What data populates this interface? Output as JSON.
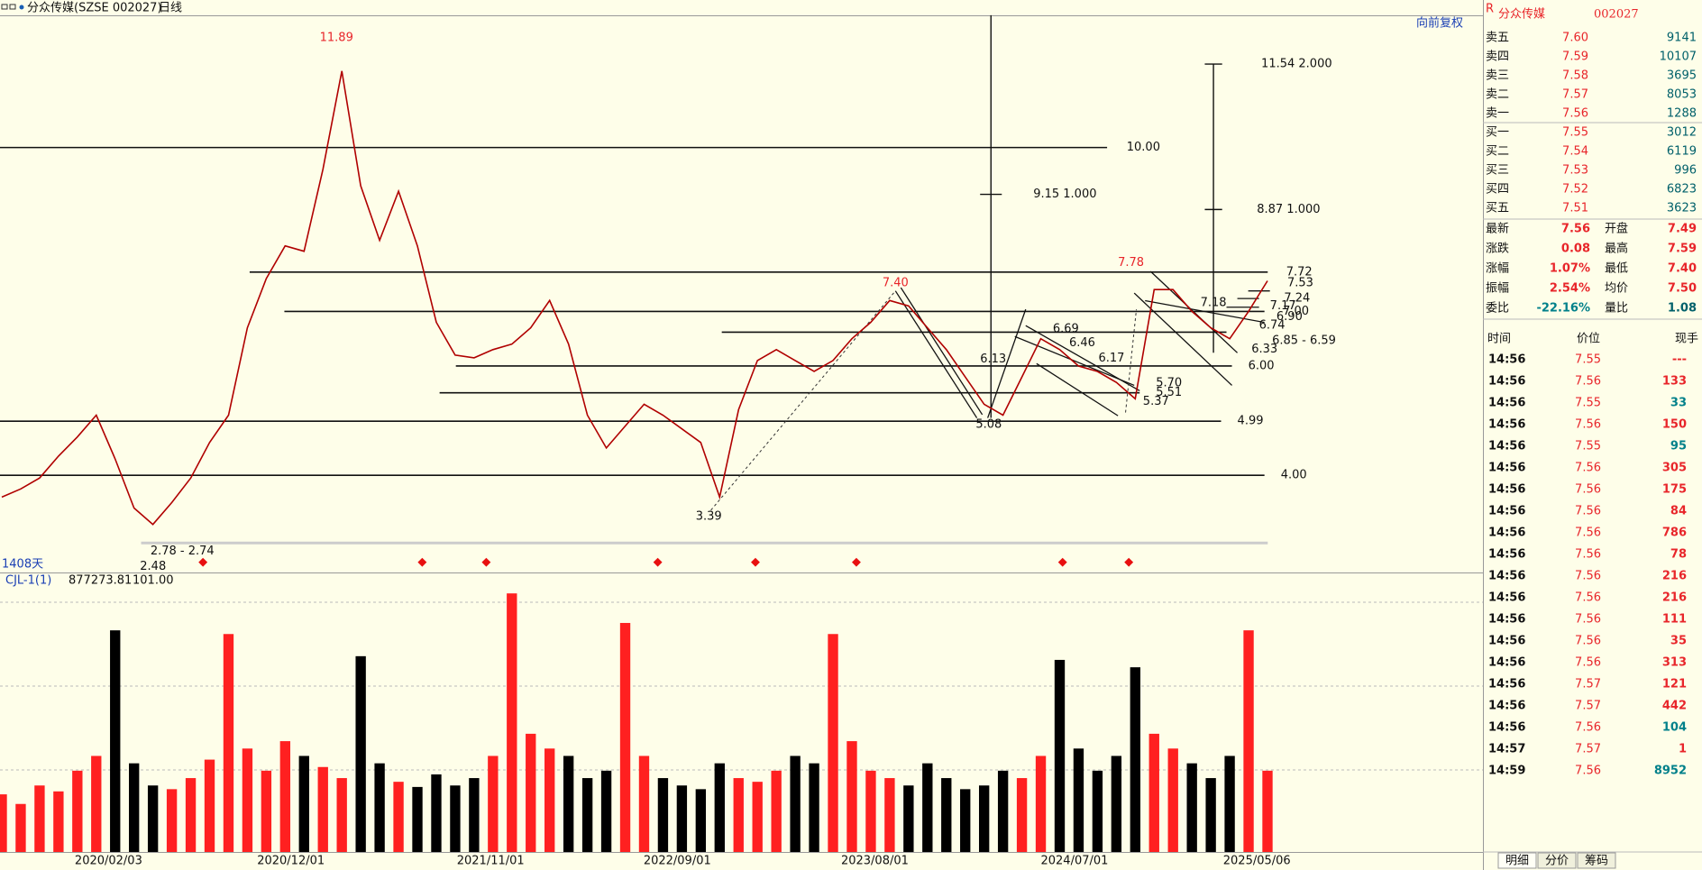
{
  "header": {
    "symbol": "分众传媒(SZSE 002027)",
    "period": "日线",
    "adjust": "向前复权"
  },
  "chart_data": [
    {
      "type": "line",
      "color": "#b00000",
      "ylim": [
        2.22,
        12.42
      ],
      "values": [
        3.6,
        3.75,
        3.95,
        4.35,
        4.7,
        5.1,
        4.3,
        3.4,
        3.1,
        3.5,
        3.95,
        4.6,
        5.1,
        6.7,
        7.6,
        8.2,
        8.1,
        9.6,
        11.4,
        9.3,
        8.3,
        9.2,
        8.2,
        6.8,
        6.2,
        6.15,
        6.3,
        6.4,
        6.7,
        7.2,
        6.4,
        5.1,
        4.5,
        4.9,
        5.3,
        5.1,
        4.85,
        4.6,
        3.6,
        5.2,
        6.1,
        6.3,
        6.1,
        5.9,
        6.1,
        6.5,
        6.8,
        7.2,
        7.1,
        6.7,
        6.3,
        5.8,
        5.3,
        5.1,
        5.8,
        6.5,
        6.3,
        6.0,
        5.9,
        5.7,
        5.4,
        7.4,
        7.4,
        7.0,
        6.7,
        6.5,
        7.0,
        7.56
      ],
      "levels": [
        {
          "value": 10,
          "label": "10.00"
        },
        {
          "value": 7.72,
          "label": "7.72"
        },
        {
          "value": 7,
          "label": "7.00"
        },
        {
          "value": 6.62
        },
        {
          "value": 6,
          "label": "6.00"
        },
        {
          "value": 5.51,
          "label": "5.51"
        },
        {
          "value": 4.99,
          "label": "4.99"
        },
        {
          "value": 4,
          "label": "4.00"
        },
        {
          "value": 2.76
        }
      ],
      "annotations": [
        "11.89",
        "2.48",
        "2.78 - 2.74",
        "3.39",
        "7.40",
        "5.08",
        "7.78",
        "6.13",
        "6.69",
        "6.46",
        "6.17",
        "7.18",
        "6.33",
        "5.70",
        "5.37",
        "6.74",
        "6.90",
        "7.24",
        "7.53",
        "7.17",
        "6.85 - 6.59",
        "9.15  1.000",
        "8.87  1.000",
        "11.54  2.000"
      ],
      "date_labels": [
        "2020/02/03",
        "2020/12/01",
        "2021/11/01",
        "2022/09/01",
        "2023/08/01",
        "2024/07/01",
        "2025/05/06"
      ],
      "footer": "1408天"
    },
    {
      "type": "bar",
      "indicator": "CJL-1(1)",
      "readouts": [
        "877273.81",
        "101.00"
      ],
      "ylim": [
        0,
        3600000
      ],
      "up_color": "#ff2020",
      "down_color": "#000000",
      "values": [
        780000,
        650000,
        900000,
        820000,
        1100000,
        1300000,
        3000000,
        1200000,
        900000,
        850000,
        1000000,
        1250000,
        2950000,
        1400000,
        1100000,
        1500000,
        1300000,
        1150000,
        1000000,
        2650000,
        1200000,
        950000,
        880000,
        1050000,
        900000,
        1000000,
        1300000,
        3500000,
        1600000,
        1400000,
        1300000,
        1000000,
        1100000,
        3100000,
        1300000,
        1000000,
        900000,
        850000,
        1200000,
        1000000,
        950000,
        1100000,
        1300000,
        1200000,
        2950000,
        1500000,
        1100000,
        1000000,
        900000,
        1200000,
        1000000,
        850000,
        900000,
        1100000,
        1000000,
        1300000,
        2600000,
        1400000,
        1100000,
        1300000,
        2500000,
        1600000,
        1400000,
        1200000,
        1000000,
        1300000,
        3000000,
        1100000
      ]
    }
  ],
  "quote": {
    "flag": "R",
    "name": "分众传媒",
    "code": "002027",
    "book": [
      {
        "label": "卖五",
        "price": "7.60",
        "volume": "9141"
      },
      {
        "label": "卖四",
        "price": "7.59",
        "volume": "10107"
      },
      {
        "label": "卖三",
        "price": "7.58",
        "volume": "3695"
      },
      {
        "label": "卖二",
        "price": "7.57",
        "volume": "8053"
      },
      {
        "label": "卖一",
        "price": "7.56",
        "volume": "1288"
      },
      {
        "label": "买一",
        "price": "7.55",
        "volume": "3012"
      },
      {
        "label": "买二",
        "price": "7.54",
        "volume": "6119"
      },
      {
        "label": "买三",
        "price": "7.53",
        "volume": "996"
      },
      {
        "label": "买四",
        "price": "7.52",
        "volume": "6823"
      },
      {
        "label": "买五",
        "price": "7.51",
        "volume": "3623"
      }
    ],
    "stats": [
      {
        "label": "最新",
        "value": "7.56",
        "color": "#e8252a"
      },
      {
        "label": "开盘",
        "value": "7.49",
        "color": "#e8252a"
      },
      {
        "label": "涨跌",
        "value": "0.08",
        "color": "#e8252a"
      },
      {
        "label": "最高",
        "value": "7.59",
        "color": "#e8252a"
      },
      {
        "label": "涨幅",
        "value": "1.07%",
        "color": "#e8252a"
      },
      {
        "label": "最低",
        "value": "7.40",
        "color": "#e8252a"
      },
      {
        "label": "振幅",
        "value": "2.54%",
        "color": "#e8252a"
      },
      {
        "label": "均价",
        "value": "7.50",
        "color": "#e8252a"
      },
      {
        "label": "委比",
        "value": "-22.16%",
        "color": "#00808a"
      },
      {
        "label": "量比",
        "value": "1.08",
        "color": "#00606a"
      }
    ],
    "trades_header": [
      "时间",
      "价位",
      "现手"
    ],
    "trades": [
      {
        "time": "14:56",
        "price": "7.55",
        "volume": "---",
        "color": "#e8252a"
      },
      {
        "time": "14:56",
        "price": "7.56",
        "volume": "133",
        "color": "#e8252a"
      },
      {
        "time": "14:56",
        "price": "7.55",
        "volume": "33",
        "color": "#00808a"
      },
      {
        "time": "14:56",
        "price": "7.56",
        "volume": "150",
        "color": "#e8252a"
      },
      {
        "time": "14:56",
        "price": "7.55",
        "volume": "95",
        "color": "#00808a"
      },
      {
        "time": "14:56",
        "price": "7.56",
        "volume": "305",
        "color": "#e8252a"
      },
      {
        "time": "14:56",
        "price": "7.56",
        "volume": "175",
        "color": "#e8252a"
      },
      {
        "time": "14:56",
        "price": "7.56",
        "volume": "84",
        "color": "#e8252a"
      },
      {
        "time": "14:56",
        "price": "7.56",
        "volume": "786",
        "color": "#e8252a"
      },
      {
        "time": "14:56",
        "price": "7.56",
        "volume": "78",
        "color": "#e8252a"
      },
      {
        "time": "14:56",
        "price": "7.56",
        "volume": "216",
        "color": "#e8252a"
      },
      {
        "time": "14:56",
        "price": "7.56",
        "volume": "216",
        "color": "#e8252a"
      },
      {
        "time": "14:56",
        "price": "7.56",
        "volume": "111",
        "color": "#e8252a"
      },
      {
        "time": "14:56",
        "price": "7.56",
        "volume": "35",
        "color": "#e8252a"
      },
      {
        "time": "14:56",
        "price": "7.56",
        "volume": "313",
        "color": "#e8252a"
      },
      {
        "time": "14:56",
        "price": "7.57",
        "volume": "121",
        "color": "#e8252a"
      },
      {
        "time": "14:56",
        "price": "7.57",
        "volume": "442",
        "color": "#e8252a"
      },
      {
        "time": "14:56",
        "price": "7.56",
        "volume": "104",
        "color": "#00808a"
      },
      {
        "time": "14:57",
        "price": "7.57",
        "volume": "1",
        "color": "#e8252a"
      },
      {
        "time": "14:59",
        "price": "7.56",
        "volume": "8952",
        "color": "#00808a"
      }
    ],
    "tabs": [
      "明细",
      "分价",
      "筹码"
    ]
  }
}
